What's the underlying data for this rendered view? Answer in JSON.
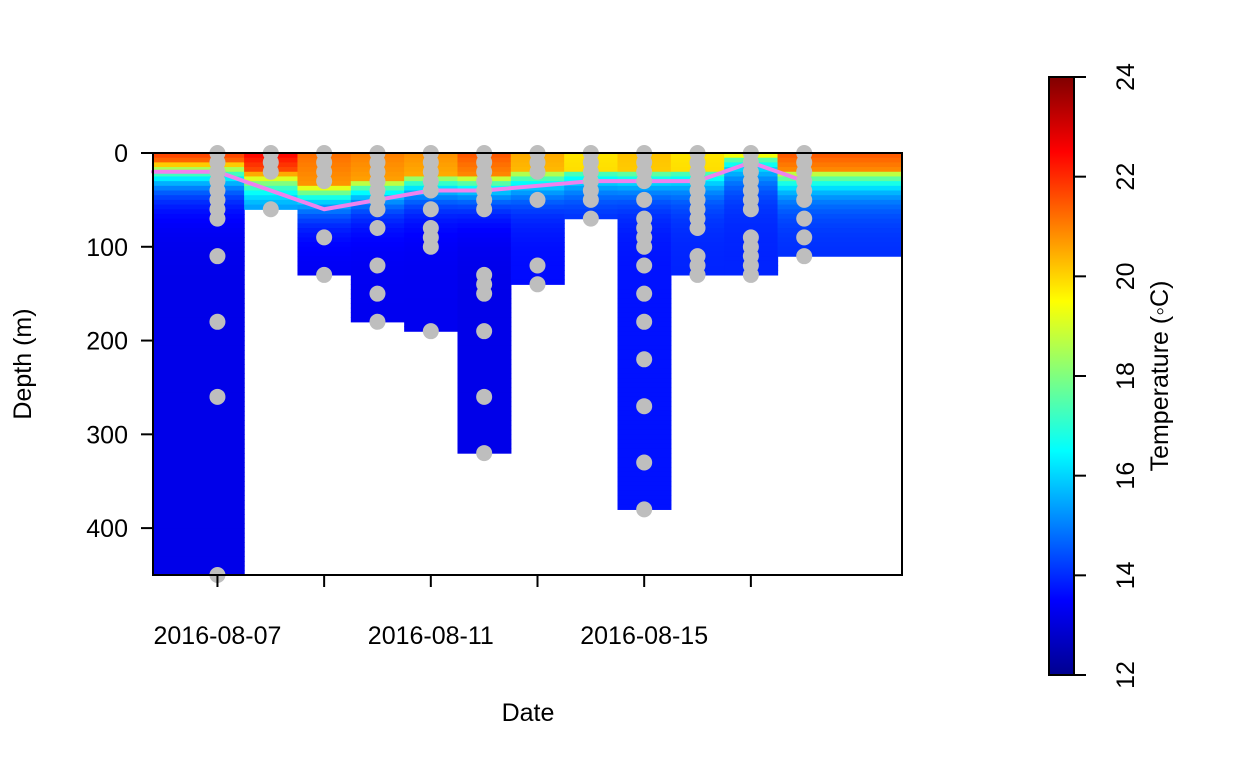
{
  "chart_data": {
    "type": "heatmap",
    "title": "",
    "xlabel": "Date",
    "ylabel": "Depth (m)",
    "xlim": [
      "2016-08-05 19:00",
      "2016-08-19 20:00"
    ],
    "ylim": [
      0,
      450
    ],
    "y_reversed": true,
    "x_ticks": [
      "2016-08-07",
      "2016-08-09",
      "2016-08-11",
      "2016-08-13",
      "2016-08-15",
      "2016-08-17"
    ],
    "x_tick_labels": [
      "2016-08-07",
      "2016-08-11",
      "2016-08-15"
    ],
    "y_ticks": [
      0,
      100,
      200,
      300,
      400
    ],
    "colorbar": {
      "label": "Temperature (◦C)",
      "range": [
        12,
        24
      ],
      "ticks": [
        12,
        14,
        16,
        18,
        20,
        22,
        24
      ],
      "palette": [
        "#00008F",
        "#0000FF",
        "#00FFFF",
        "#FFFF00",
        "#FF0000",
        "#800000"
      ]
    },
    "profiles": [
      {
        "date": "2016-08-07",
        "max_depth": 450,
        "surface_temp": 21.8,
        "deep_temp": 13.2,
        "mld": 20,
        "samples": [
          0,
          10,
          20,
          30,
          40,
          50,
          60,
          70,
          110,
          180,
          260,
          450
        ]
      },
      {
        "date": "2016-08-08",
        "max_depth": 60,
        "surface_temp": 22.5,
        "deep_temp": 14.5,
        "mld": 35,
        "samples": [
          0,
          10,
          20,
          60
        ]
      },
      {
        "date": "2016-08-09",
        "max_depth": 130,
        "surface_temp": 21.2,
        "deep_temp": 13.3,
        "mld": 60,
        "samples": [
          0,
          10,
          20,
          30,
          90,
          130
        ]
      },
      {
        "date": "2016-08-10",
        "max_depth": 180,
        "surface_temp": 21.0,
        "deep_temp": 13.3,
        "mld": 50,
        "samples": [
          0,
          10,
          20,
          30,
          40,
          50,
          60,
          80,
          120,
          150,
          180
        ]
      },
      {
        "date": "2016-08-11",
        "max_depth": 190,
        "surface_temp": 20.8,
        "deep_temp": 13.3,
        "mld": 40,
        "samples": [
          0,
          10,
          20,
          30,
          40,
          60,
          80,
          90,
          100,
          190
        ]
      },
      {
        "date": "2016-08-12",
        "max_depth": 320,
        "surface_temp": 21.5,
        "deep_temp": 13.2,
        "mld": 40,
        "samples": [
          0,
          10,
          20,
          30,
          40,
          50,
          60,
          130,
          140,
          150,
          190,
          260,
          320
        ]
      },
      {
        "date": "2016-08-13",
        "max_depth": 140,
        "surface_temp": 20.5,
        "deep_temp": 13.6,
        "mld": 35,
        "samples": [
          0,
          10,
          20,
          50,
          120,
          140
        ]
      },
      {
        "date": "2016-08-14",
        "max_depth": 70,
        "surface_temp": 19.8,
        "deep_temp": 13.8,
        "mld": 30,
        "samples": [
          0,
          10,
          20,
          30,
          40,
          50,
          70
        ]
      },
      {
        "date": "2016-08-15",
        "max_depth": 380,
        "surface_temp": 20.2,
        "deep_temp": 13.7,
        "mld": 30,
        "samples": [
          0,
          10,
          20,
          30,
          50,
          70,
          80,
          90,
          100,
          120,
          150,
          180,
          220,
          270,
          330,
          380
        ]
      },
      {
        "date": "2016-08-16",
        "max_depth": 130,
        "surface_temp": 19.8,
        "deep_temp": 13.9,
        "mld": 30,
        "samples": [
          0,
          10,
          20,
          30,
          40,
          50,
          60,
          70,
          80,
          110,
          120,
          130
        ]
      },
      {
        "date": "2016-08-17",
        "max_depth": 130,
        "surface_temp": 19.3,
        "deep_temp": 13.9,
        "mld": 10,
        "samples": [
          0,
          10,
          20,
          30,
          40,
          50,
          60,
          90,
          100,
          110,
          120,
          130
        ]
      },
      {
        "date": "2016-08-18",
        "max_depth": 110,
        "surface_temp": 21.5,
        "deep_temp": 14.0,
        "mld": 30,
        "samples": [
          0,
          10,
          20,
          30,
          40,
          50,
          70,
          90,
          110
        ]
      }
    ],
    "mixed_layer_line": {
      "color": "#EE82EE",
      "points": [
        [
          "2016-08-05 19:00",
          20
        ],
        [
          "2016-08-07",
          20
        ],
        [
          "2016-08-09",
          60
        ],
        [
          "2016-08-10",
          50
        ],
        [
          "2016-08-11",
          40
        ],
        [
          "2016-08-12",
          40
        ],
        [
          "2016-08-13",
          35
        ],
        [
          "2016-08-14",
          30
        ],
        [
          "2016-08-15",
          30
        ],
        [
          "2016-08-16",
          30
        ],
        [
          "2016-08-17",
          10
        ],
        [
          "2016-08-18",
          30
        ]
      ]
    },
    "sample_point_color": "#BEBEBE"
  }
}
